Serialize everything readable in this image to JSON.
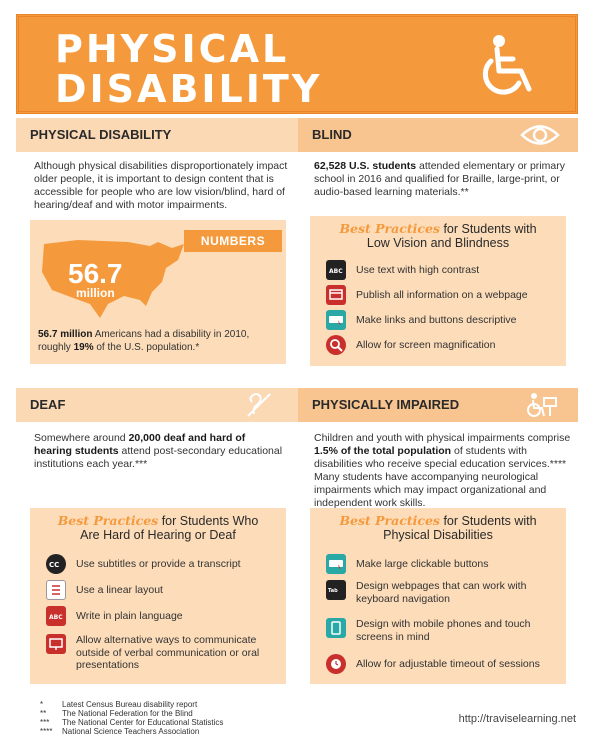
{
  "banner": {
    "title_line1": "PHYSICAL",
    "title_line2": "DISABILITY",
    "icon": "wheelchair-icon"
  },
  "colors": {
    "orange": "#f59a3c",
    "light": "#fbd9b4",
    "red": "#c9302c"
  },
  "physical": {
    "header": "PHYSICAL DISABILITY",
    "text": "Although physical disabilities disproportionately impact older people, it is important to design content that is accessible for people who are low vision/blind, hard of hearing/deaf and with motor impairments.",
    "numbers_label": "NUMBERS",
    "big_number": "56.7",
    "big_unit": "million",
    "stat_bold1": "56.7 million",
    "stat_text1": " Americans had a disability in 2010, roughly ",
    "stat_bold2": "19%",
    "stat_text2": " of the U.S. population.*"
  },
  "blind": {
    "header": "BLIND",
    "icon": "eye-icon",
    "bold": "62,528 U.S. students",
    "text": " attended elementary or primary school in 2016 and qualified for Braille, large-print, or audio-based learning materials.**",
    "bp_script": "Best Practices",
    "bp_rest": " for Students with",
    "bp_line2": "Low Vision and Blindness",
    "items": [
      {
        "label": "Use text with high contrast",
        "icon": "abc-icon"
      },
      {
        "label": "Publish all information on a webpage",
        "icon": "webpage-icon"
      },
      {
        "label": "Make links and buttons descriptive",
        "icon": "click-here-icon"
      },
      {
        "label": "Allow for screen magnification",
        "icon": "magnifier-icon"
      }
    ]
  },
  "deaf": {
    "header": "DEAF",
    "icon": "ear-icon",
    "pre": "Somewhere around ",
    "bold": "20,000 deaf and hard of hearing students",
    "text": " attend post-secondary educational institutions each year.***",
    "bp_script": "Best Practices",
    "bp_rest": " for Students Who",
    "bp_line2": "Are Hard of Hearing or Deaf",
    "items": [
      {
        "label": "Use subtitles or provide a transcript",
        "icon": "cc-icon"
      },
      {
        "label": "Use a linear layout",
        "icon": "list-icon"
      },
      {
        "label": "Write in plain language",
        "icon": "abc-icon"
      },
      {
        "label": "Allow alternative ways to communicate outside of verbal communication or oral presentations",
        "icon": "presentation-icon"
      }
    ]
  },
  "impaired": {
    "header": "PHYSICALLY IMPAIRED",
    "icon": "student-wheelchair-icon",
    "pre": "Children and youth with physical impairments comprise ",
    "bold": "1.5% of the total population",
    "text": " of students with disabilities who receive special education services.**** Many students have accompanying neurological impairments which may impact organizational and independent work skills.",
    "bp_script": "Best Practices",
    "bp_rest": " for Students with",
    "bp_line2": "Physical Disabilities",
    "items": [
      {
        "label": "Make large clickable buttons",
        "icon": "click-here-icon"
      },
      {
        "label": "Design webpages that can work with keyboard navigation",
        "icon": "tab-key-icon"
      },
      {
        "label": "Design with mobile phones and touch screens in mind",
        "icon": "mobile-icon"
      },
      {
        "label": "Allow for adjustable timeout of sessions",
        "icon": "alarm-icon"
      }
    ]
  },
  "footnotes": [
    {
      "mark": "*",
      "text": "Latest Census Bureau disability report"
    },
    {
      "mark": "**",
      "text": "The National Federation for the Blind"
    },
    {
      "mark": "***",
      "text": "The National Center for Educational Statistics"
    },
    {
      "mark": "****",
      "text": "National Science Teachers Association"
    }
  ],
  "url": "http://traviselearning.net"
}
